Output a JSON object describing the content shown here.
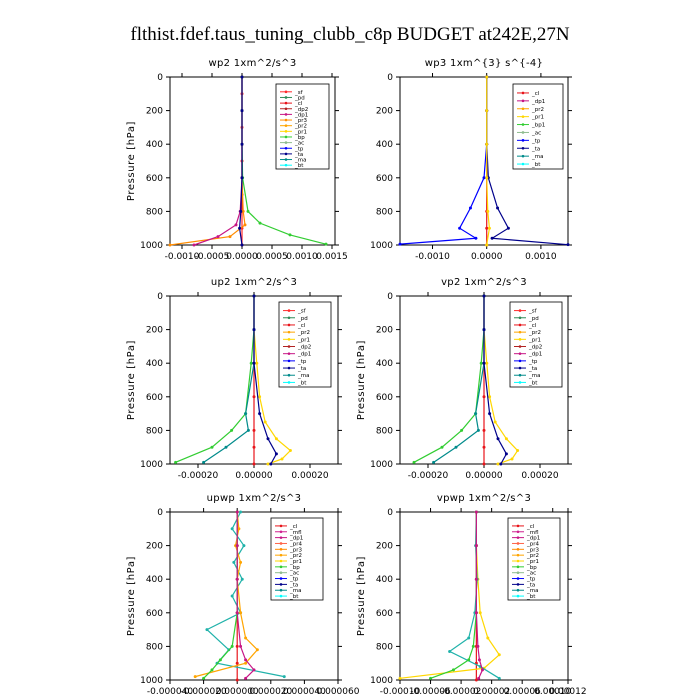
{
  "title": "flthist.fdef.taus_tuning_clubb_c8p  BUDGET at242E,27N",
  "colors": {
    "sf": "#ff2b2b",
    "pd": "#2e8b57",
    "cl": "#e8151b",
    "mfl": "#d02090",
    "dp1": "#c71585",
    "dp2": "#b22222",
    "pr1": "#ffd700",
    "pr2": "#ffa500",
    "pr3": "#ff8c00",
    "pr4": "#ff6347",
    "bp": "#32cd32",
    "bp1": "#32cd32",
    "ac": "#8fbc8f",
    "tp": "#0000ff",
    "ta": "#00008b",
    "ma": "#008b8b",
    "bt": "#00ffff",
    "sc": "#20b2aa"
  },
  "chart_data": [
    {
      "type": "line",
      "title": "wp2   1xm^2/s^3",
      "ylabel": "Pressure [hPa]",
      "ylim": [
        1000,
        0
      ],
      "xlim": [
        -0.0012,
        0.00155
      ],
      "xticks": [
        -0.001,
        -0.0005,
        0.0,
        0.0005,
        0.001,
        0.0015
      ],
      "xticklabels": [
        "-0.0010",
        "-0.0005",
        "0.0000",
        "0.0005",
        "0.0010",
        "0.0015"
      ],
      "yticks": [
        0,
        200,
        400,
        600,
        800,
        1000
      ],
      "legend": [
        "_sf",
        "_pd",
        "_cl",
        "_dp2",
        "_dp1",
        "_pr3",
        "_pr2",
        "_pr1",
        "_bp",
        "_ac",
        "_tp",
        "_ta",
        "_ma",
        "_bt"
      ],
      "series": [
        {
          "name": "_sf",
          "color": "#ff2b2b",
          "x": [
            0,
            0,
            0,
            0,
            0,
            0,
            0,
            0,
            0,
            0,
            0
          ],
          "y": [
            0,
            100,
            200,
            300,
            400,
            500,
            600,
            700,
            800,
            900,
            1000
          ]
        },
        {
          "name": "_pr3",
          "color": "#ff8c00",
          "x": [
            0,
            0,
            0,
            0,
            2e-05,
            5e-05,
            -0.0002,
            -0.0012
          ],
          "y": [
            0,
            200,
            400,
            600,
            800,
            880,
            950,
            1000
          ]
        },
        {
          "name": "_dp1",
          "color": "#c71585",
          "x": [
            0,
            0,
            0,
            0,
            -3e-05,
            -0.0001,
            -0.0004,
            -0.0008
          ],
          "y": [
            0,
            200,
            400,
            600,
            800,
            880,
            950,
            1000
          ]
        },
        {
          "name": "_bp",
          "color": "#32cd32",
          "x": [
            0,
            0,
            0,
            1e-05,
            0.0001,
            0.0003,
            0.0008,
            0.0014
          ],
          "y": [
            0,
            200,
            400,
            600,
            800,
            870,
            940,
            995
          ]
        },
        {
          "name": "_ta",
          "color": "#00008b",
          "x": [
            0,
            0,
            0,
            0,
            -2e-05,
            -4e-05,
            0
          ],
          "y": [
            0,
            200,
            400,
            600,
            800,
            900,
            1000
          ]
        }
      ]
    },
    {
      "type": "line",
      "title": "wp3   1xm^{3} s^{-4}",
      "ylabel": "",
      "ylim": [
        1000,
        0
      ],
      "xlim": [
        -0.0016,
        0.0015
      ],
      "xticks": [
        -0.001,
        0.0,
        0.001
      ],
      "xticklabels": [
        "-0.0010",
        "0.0000",
        "0.0010"
      ],
      "yticks": [
        0,
        200,
        400,
        600,
        800,
        1000
      ],
      "legend": [
        "_cl",
        "_dp1",
        "_pr2",
        "_pr1",
        "_bp1",
        "_ac",
        "_tp",
        "_ta",
        "_ma",
        "_bt"
      ],
      "series": [
        {
          "name": "_cl",
          "color": "#e8151b",
          "x": [
            0,
            0,
            0,
            0,
            0,
            0,
            0
          ],
          "y": [
            0,
            200,
            400,
            600,
            800,
            900,
            1000
          ]
        },
        {
          "name": "_ta",
          "color": "#0000ff",
          "x": [
            0,
            0,
            0,
            -5e-05,
            -0.0003,
            -0.0005,
            -0.0002,
            -0.0016
          ],
          "y": [
            0,
            200,
            400,
            600,
            780,
            900,
            960,
            995
          ]
        },
        {
          "name": "_tp",
          "color": "#00008b",
          "x": [
            0,
            0,
            0,
            3e-05,
            0.0002,
            0.0004,
            0.0001,
            0.0015
          ],
          "y": [
            0,
            200,
            400,
            600,
            780,
            900,
            960,
            998
          ]
        },
        {
          "name": "_pr1",
          "color": "#ffd700",
          "x": [
            0,
            0,
            0,
            0,
            2e-05,
            5e-05,
            0
          ],
          "y": [
            0,
            200,
            400,
            600,
            800,
            900,
            1000
          ]
        }
      ]
    },
    {
      "type": "line",
      "title": "up2   1xm^2/s^3",
      "ylabel": "Pressure [hPa]",
      "ylim": [
        1000,
        0
      ],
      "xlim": [
        -0.0003,
        0.0003
      ],
      "xticks": [
        -0.0002,
        0.0,
        0.0002
      ],
      "xticklabels": [
        "-0.00020",
        "0.00000",
        "0.00020"
      ],
      "yticks": [
        0,
        200,
        400,
        600,
        800,
        1000
      ],
      "legend": [
        "_sf",
        "_pd",
        "_cl",
        "_pr2",
        "_pr1",
        "_dp2",
        "_dp1",
        "_tp",
        "_ta",
        "_ma",
        "_bt"
      ],
      "series": [
        {
          "name": "_cl",
          "color": "#e8151b",
          "x": [
            0,
            0,
            0,
            0,
            0,
            0,
            0
          ],
          "y": [
            0,
            200,
            400,
            600,
            800,
            900,
            1000
          ]
        },
        {
          "name": "_pr2",
          "color": "#ffd700",
          "x": [
            0,
            0,
            1e-05,
            2e-05,
            4e-05,
            8e-05,
            0.00013,
            0.0001,
            5e-05
          ],
          "y": [
            0,
            200,
            400,
            600,
            750,
            850,
            920,
            970,
            1000
          ]
        },
        {
          "name": "_dp1",
          "color": "#32cd32",
          "x": [
            0,
            0,
            -1e-05,
            -3e-05,
            -8e-05,
            -0.00015,
            -0.00028
          ],
          "y": [
            0,
            200,
            400,
            700,
            800,
            900,
            990
          ]
        },
        {
          "name": "_ma",
          "color": "#008b8b",
          "x": [
            0,
            0,
            0,
            -3e-05,
            -2e-05,
            -0.0001,
            -0.00018
          ],
          "y": [
            0,
            200,
            400,
            700,
            800,
            900,
            990
          ]
        },
        {
          "name": "_ta",
          "color": "#00008b",
          "x": [
            0,
            0,
            0,
            2e-05,
            5e-05,
            8e-05,
            6e-05
          ],
          "y": [
            0,
            200,
            400,
            700,
            850,
            940,
            1000
          ]
        }
      ]
    },
    {
      "type": "line",
      "title": "vp2   1xm^2/s^3",
      "ylabel": "Pressure [hPa]",
      "ylim": [
        1000,
        0
      ],
      "xlim": [
        -0.0003,
        0.0003
      ],
      "xticks": [
        -0.0002,
        0.0,
        0.0002
      ],
      "xticklabels": [
        "-0.00020",
        "0.00000",
        "0.00020"
      ],
      "yticks": [
        0,
        200,
        400,
        600,
        800,
        1000
      ],
      "legend": [
        "_sf",
        "_pd",
        "_cl",
        "_pr2",
        "_pr1",
        "_dp2",
        "_dp1",
        "_tp",
        "_ta",
        "_ma",
        "_bt"
      ],
      "series": [
        {
          "name": "_cl",
          "color": "#e8151b",
          "x": [
            0,
            0,
            0,
            0,
            0,
            0,
            0
          ],
          "y": [
            0,
            200,
            400,
            600,
            800,
            900,
            1000
          ]
        },
        {
          "name": "_pr2",
          "color": "#ffd700",
          "x": [
            0,
            0,
            1e-05,
            2e-05,
            4e-05,
            8e-05,
            0.00012,
            0.0001,
            5e-05
          ],
          "y": [
            0,
            200,
            400,
            600,
            750,
            850,
            920,
            970,
            1000
          ]
        },
        {
          "name": "_dp1",
          "color": "#32cd32",
          "x": [
            0,
            0,
            -1e-05,
            -3e-05,
            -8e-05,
            -0.00015,
            -0.00025
          ],
          "y": [
            0,
            200,
            400,
            700,
            800,
            900,
            990
          ]
        },
        {
          "name": "_ma",
          "color": "#008b8b",
          "x": [
            0,
            0,
            0,
            -3e-05,
            -2e-05,
            -0.0001,
            -0.00018
          ],
          "y": [
            0,
            200,
            400,
            700,
            800,
            900,
            990
          ]
        },
        {
          "name": "_ta",
          "color": "#00008b",
          "x": [
            0,
            0,
            0,
            2e-05,
            5e-05,
            8e-05,
            6e-05
          ],
          "y": [
            0,
            200,
            400,
            700,
            850,
            940,
            1000
          ]
        }
      ]
    },
    {
      "type": "line",
      "title": "upwp   1xm^2/s^3",
      "ylabel": "Pressure [hPa]",
      "ylim": [
        1000,
        0
      ],
      "xlim": [
        -4e-05,
        6e-05
      ],
      "xticks": [
        -4e-05,
        -2e-05,
        0.0,
        2e-05,
        4e-05,
        6e-05
      ],
      "xticklabels": [
        "-0.000040",
        "-0.000020",
        "0.000000",
        "0.000020",
        "0.000040",
        "0.000060"
      ],
      "yticks": [
        0,
        200,
        400,
        600,
        800,
        1000
      ],
      "legend": [
        "_cl",
        "_mfl",
        "_dp1",
        "_pr4",
        "_pr3",
        "_pr2",
        "_pr1",
        "_bp",
        "_ac",
        "_tp",
        "_ta",
        "_ma",
        "_bt"
      ],
      "series": [
        {
          "name": "_cl",
          "color": "#e8151b",
          "x": [
            0,
            0,
            0,
            0,
            0,
            0,
            0
          ],
          "y": [
            0,
            200,
            400,
            600,
            800,
            900,
            1000
          ]
        },
        {
          "name": "_sc",
          "color": "#20b2aa",
          "x": [
            2e-06,
            -3e-06,
            4e-06,
            -2e-06,
            3e-06,
            -3e-06,
            2e-06,
            -1.8e-05,
            -5e-06,
            -1.2e-05,
            2.8e-05
          ],
          "y": [
            0,
            100,
            200,
            300,
            400,
            500,
            600,
            700,
            820,
            900,
            980
          ]
        },
        {
          "name": "_pr2",
          "color": "#ffa500",
          "x": [
            0,
            1e-06,
            -1e-06,
            2e-06,
            0,
            2e-06,
            5e-06,
            1.2e-05,
            5e-06,
            -2.5e-05
          ],
          "y": [
            0,
            100,
            200,
            300,
            400,
            600,
            750,
            820,
            900,
            980
          ]
        },
        {
          "name": "_bp",
          "color": "#32cd32",
          "x": [
            0,
            0,
            0,
            0,
            -3e-06,
            -1e-05,
            -1.5e-05,
            -2e-05
          ],
          "y": [
            0,
            200,
            400,
            600,
            800,
            880,
            940,
            990
          ]
        },
        {
          "name": "_dp1",
          "color": "#c71585",
          "x": [
            0,
            0,
            0,
            0,
            2e-06,
            5e-06,
            1e-05,
            5e-06
          ],
          "y": [
            0,
            200,
            400,
            600,
            800,
            880,
            940,
            990
          ]
        }
      ]
    },
    {
      "type": "line",
      "title": "vpwp   1xm^2/s^3",
      "ylabel": "Pressure [hPa]",
      "ylim": [
        1000,
        0
      ],
      "xlim": [
        -0.0001,
        0.00012
      ],
      "xticks": [
        -0.0001,
        -6e-05,
        -2e-05,
        2e-05,
        6e-05,
        0.0001,
        0.00012
      ],
      "xticklabels": [
        "-0.00010",
        "-0.00006",
        "-0.00002",
        "0.00002",
        "0.00006",
        "0.00010",
        "0.00012"
      ],
      "yticks": [
        0,
        200,
        400,
        600,
        800,
        1000
      ],
      "legend": [
        "_cl",
        "_mfl",
        "_dp1",
        "_pr4",
        "_pr3",
        "_pr2",
        "_pr1",
        "_bp",
        "_ac",
        "_tp",
        "_ta",
        "_ma",
        "_bt"
      ],
      "series": [
        {
          "name": "_cl",
          "color": "#e8151b",
          "x": [
            0,
            0,
            0,
            0,
            0,
            0,
            0
          ],
          "y": [
            0,
            200,
            400,
            600,
            800,
            900,
            1000
          ]
        },
        {
          "name": "_pr1",
          "color": "#ffd700",
          "x": [
            0,
            0,
            2e-06,
            5e-06,
            1.5e-05,
            3e-05,
            1e-05,
            -0.0001
          ],
          "y": [
            0,
            200,
            400,
            600,
            750,
            850,
            930,
            990
          ]
        },
        {
          "name": "_sc",
          "color": "#20b2aa",
          "x": [
            0,
            -1e-06,
            1e-06,
            -2e-06,
            -1e-05,
            -3.5e-05,
            5e-06,
            3e-05
          ],
          "y": [
            0,
            200,
            400,
            600,
            750,
            830,
            920,
            990
          ]
        },
        {
          "name": "_bp",
          "color": "#32cd32",
          "x": [
            0,
            0,
            0,
            0,
            -4e-06,
            -1e-05,
            -3e-05,
            -6e-05
          ],
          "y": [
            0,
            200,
            400,
            600,
            800,
            880,
            940,
            990
          ]
        },
        {
          "name": "_dp1",
          "color": "#c71585",
          "x": [
            0,
            0,
            0,
            0,
            2e-06,
            4e-06,
            8e-06,
            3e-06
          ],
          "y": [
            0,
            200,
            400,
            600,
            800,
            880,
            940,
            990
          ]
        }
      ]
    }
  ]
}
